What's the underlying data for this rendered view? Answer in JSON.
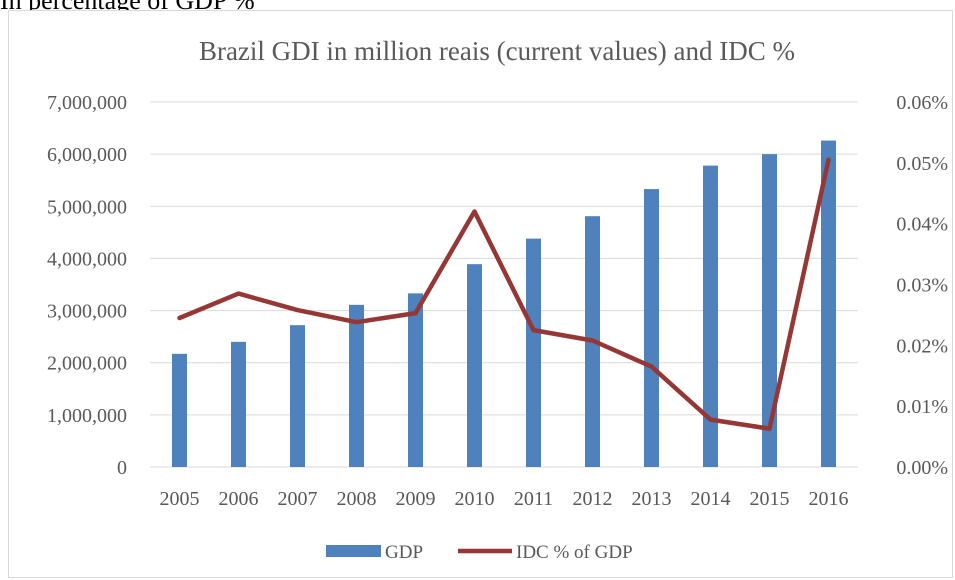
{
  "caption": "In percentage of GDP %",
  "chart_data": {
    "type": "bar",
    "title": "Brazil GDI in million reais (current values) and IDC %",
    "categories": [
      "2005",
      "2006",
      "2007",
      "2008",
      "2009",
      "2010",
      "2011",
      "2012",
      "2013",
      "2014",
      "2015",
      "2016"
    ],
    "series": [
      {
        "name": "GDP",
        "type": "bar",
        "axis": "left",
        "color": "#4f81bd",
        "values": [
          2170000,
          2400000,
          2720000,
          3110000,
          3330000,
          3890000,
          4380000,
          4810000,
          5330000,
          5780000,
          6000000,
          6260000
        ]
      },
      {
        "name": "IDC % of GDP",
        "type": "line",
        "axis": "right",
        "color": "#953735",
        "values": [
          0.0245,
          0.0285,
          0.0258,
          0.0238,
          0.0253,
          0.042,
          0.0225,
          0.0208,
          0.0165,
          0.0078,
          0.0063,
          0.0505
        ]
      }
    ],
    "y_left": {
      "ylim": [
        0,
        7000000
      ],
      "ticks": [
        "0",
        "1,000,000",
        "2,000,000",
        "3,000,000",
        "4,000,000",
        "5,000,000",
        "6,000,000",
        "7,000,000"
      ]
    },
    "y_right": {
      "ylim": [
        0,
        0.06
      ],
      "ticks": [
        "0.00%",
        "0.01%",
        "0.02%",
        "0.03%",
        "0.04%",
        "0.05%",
        "0.06%"
      ]
    },
    "grid": true,
    "legend": "bottom"
  }
}
